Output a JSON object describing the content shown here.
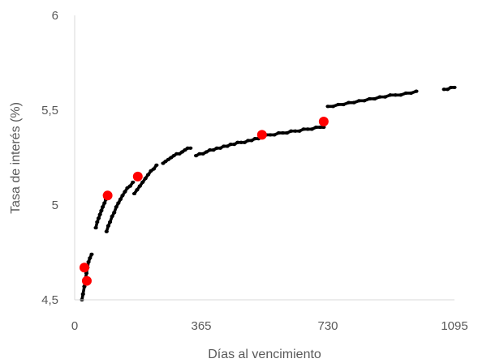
{
  "chart_data": {
    "type": "scatter",
    "title": "",
    "xlabel": "Días al vencimiento",
    "ylabel": "Tasa de interés (%)",
    "xlim": [
      0,
      1095
    ],
    "ylim": [
      4.5,
      6
    ],
    "x_ticks": [
      0,
      365,
      730,
      1095
    ],
    "x_tick_labels": [
      "0",
      "365",
      "730",
      "1095"
    ],
    "y_ticks": [
      4.5,
      5,
      5.5,
      6
    ],
    "y_tick_labels": [
      "4,5",
      "5",
      "5,5",
      "6"
    ],
    "grid": false,
    "legend": "none",
    "series": [
      {
        "marker": "small-dot",
        "color": "#000000",
        "segments": [
          [
            [
              21,
              4.5
            ],
            [
              24,
              4.53
            ],
            [
              28,
              4.57
            ],
            [
              31,
              4.61
            ],
            [
              34,
              4.64
            ],
            [
              37,
              4.67
            ],
            [
              40,
              4.7
            ],
            [
              44,
              4.72
            ],
            [
              49,
              4.74
            ]
          ],
          [
            [
              61,
              4.88
            ],
            [
              65,
              4.91
            ],
            [
              69,
              4.93
            ],
            [
              73,
              4.95
            ],
            [
              77,
              4.97
            ],
            [
              81,
              4.99
            ],
            [
              86,
              5.01
            ],
            [
              90,
              5.03
            ],
            [
              95,
              5.05
            ]
          ],
          [
            [
              92,
              4.86
            ],
            [
              97,
              4.89
            ],
            [
              102,
              4.91
            ],
            [
              108,
              4.94
            ],
            [
              114,
              4.96
            ],
            [
              120,
              4.99
            ],
            [
              126,
              5.01
            ],
            [
              132,
              5.03
            ],
            [
              138,
              5.05
            ],
            [
              145,
              5.07
            ],
            [
              152,
              5.09
            ],
            [
              160,
              5.1
            ],
            [
              168,
              5.12
            ]
          ],
          [
            [
              172,
              5.06
            ],
            [
              180,
              5.08
            ],
            [
              188,
              5.1
            ],
            [
              196,
              5.12
            ],
            [
              204,
              5.14
            ],
            [
              212,
              5.16
            ],
            [
              220,
              5.18
            ],
            [
              228,
              5.19
            ],
            [
              236,
              5.21
            ]
          ],
          [
            [
              255,
              5.22
            ],
            [
              262,
              5.23
            ],
            [
              270,
              5.24
            ],
            [
              278,
              5.25
            ],
            [
              286,
              5.26
            ],
            [
              294,
              5.27
            ],
            [
              302,
              5.27
            ],
            [
              310,
              5.28
            ],
            [
              318,
              5.29
            ],
            [
              326,
              5.3
            ],
            [
              334,
              5.3
            ]
          ],
          [
            [
              350,
              5.26
            ],
            [
              360,
              5.27
            ],
            [
              370,
              5.27
            ],
            [
              380,
              5.28
            ],
            [
              390,
              5.29
            ],
            [
              400,
              5.29
            ],
            [
              410,
              5.3
            ],
            [
              420,
              5.3
            ],
            [
              430,
              5.31
            ],
            [
              440,
              5.31
            ],
            [
              450,
              5.32
            ],
            [
              460,
              5.32
            ],
            [
              470,
              5.33
            ],
            [
              480,
              5.33
            ],
            [
              490,
              5.33
            ],
            [
              500,
              5.34
            ],
            [
              510,
              5.34
            ],
            [
              520,
              5.35
            ],
            [
              530,
              5.35
            ]
          ],
          [
            [
              540,
              5.36
            ],
            [
              552,
              5.37
            ],
            [
              564,
              5.37
            ],
            [
              576,
              5.37
            ],
            [
              588,
              5.38
            ],
            [
              600,
              5.38
            ],
            [
              612,
              5.38
            ],
            [
              624,
              5.39
            ],
            [
              636,
              5.39
            ],
            [
              648,
              5.39
            ],
            [
              660,
              5.4
            ],
            [
              672,
              5.4
            ],
            [
              684,
              5.4
            ],
            [
              696,
              5.41
            ],
            [
              708,
              5.41
            ],
            [
              718,
              5.41
            ]
          ],
          [
            [
              730,
              5.52
            ],
            [
              745,
              5.52
            ],
            [
              760,
              5.53
            ],
            [
              775,
              5.53
            ],
            [
              790,
              5.54
            ],
            [
              805,
              5.54
            ],
            [
              820,
              5.55
            ],
            [
              835,
              5.55
            ],
            [
              850,
              5.56
            ],
            [
              865,
              5.56
            ],
            [
              880,
              5.57
            ],
            [
              895,
              5.57
            ],
            [
              910,
              5.58
            ],
            [
              925,
              5.58
            ],
            [
              940,
              5.58
            ],
            [
              955,
              5.59
            ],
            [
              970,
              5.59
            ],
            [
              985,
              5.6
            ]
          ],
          [
            [
              1065,
              5.61
            ],
            [
              1075,
              5.61
            ],
            [
              1085,
              5.62
            ],
            [
              1095,
              5.62
            ]
          ]
        ]
      },
      {
        "marker": "large-dot",
        "color": "#ff0000",
        "points": [
          [
            28,
            4.67
          ],
          [
            35,
            4.6
          ],
          [
            95,
            5.05
          ],
          [
            182,
            5.15
          ],
          [
            540,
            5.37
          ],
          [
            718,
            5.44
          ]
        ]
      }
    ]
  }
}
